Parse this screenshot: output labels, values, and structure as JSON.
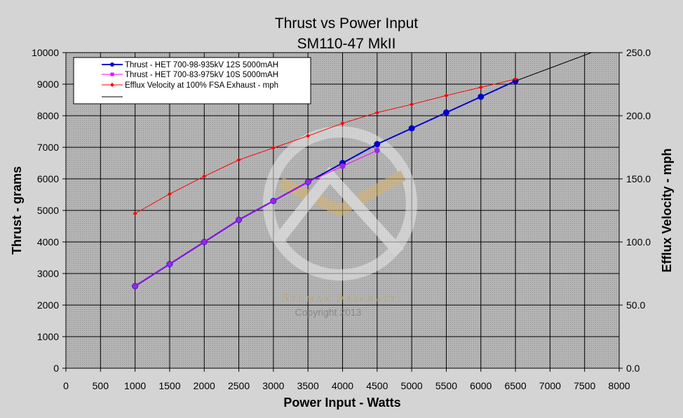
{
  "chart_data": {
    "type": "line",
    "title": "Thrust vs Power Input",
    "subtitle": "SM110-47 MkII",
    "xlabel": "Power Input - Watts",
    "ylabel": "Thrust - grams",
    "y2label": "Efflux Velocity - mph",
    "xlim": [
      0,
      8000
    ],
    "ylim": [
      0,
      10000
    ],
    "y2lim": [
      0,
      250
    ],
    "x_ticks": [
      0,
      500,
      1000,
      1500,
      2000,
      2500,
      3000,
      3500,
      4000,
      4500,
      5000,
      5500,
      6000,
      6500,
      7000,
      7500,
      8000
    ],
    "y_ticks": [
      0,
      1000,
      2000,
      3000,
      4000,
      5000,
      6000,
      7000,
      8000,
      9000,
      10000
    ],
    "y2_ticks": [
      "0.0",
      "50.0",
      "100.0",
      "150.0",
      "200.0",
      "250.0"
    ],
    "grid": true,
    "legend_position": "top-left",
    "series": [
      {
        "name": "Thrust - HET 700-98-935kV 12S 5000mAH",
        "axis": "left",
        "color": "#0000cc",
        "marker": "circle",
        "x": [
          1000,
          1500,
          2000,
          2500,
          3000,
          3500,
          4000,
          4500,
          5000,
          5500,
          6000,
          6500
        ],
        "y": [
          2600,
          3300,
          4000,
          4700,
          5300,
          5900,
          6500,
          7100,
          7600,
          8100,
          8600,
          9100
        ]
      },
      {
        "name": "Thrust - HET 700-83-975kV 10S 5000mAH",
        "axis": "left",
        "color": "#ff00ff",
        "marker": "square",
        "x": [
          1000,
          1500,
          2000,
          2500,
          3000,
          3500,
          4000,
          4500
        ],
        "y": [
          2600,
          3300,
          4000,
          4700,
          5300,
          5900,
          6400,
          6900
        ]
      },
      {
        "name": "Efflux Velocity at 100% FSA Exhaust - mph",
        "axis": "right",
        "color": "#ff0000",
        "marker": "diamond",
        "x": [
          1000,
          1500,
          2000,
          2500,
          3000,
          3500,
          4000,
          4500,
          5000,
          5500,
          6000,
          6500
        ],
        "y": [
          122.5,
          138,
          152,
          165,
          174.5,
          184,
          194,
          202.5,
          209,
          216,
          222.5,
          229
        ]
      },
      {
        "name": "",
        "axis": "left",
        "color": "#000000",
        "marker": "none",
        "x": [
          6500,
          7600
        ],
        "y": [
          9100,
          10000
        ]
      }
    ]
  },
  "watermark": {
    "brand": "Stumax Aircraft",
    "copyright": "Copyright 2013"
  }
}
